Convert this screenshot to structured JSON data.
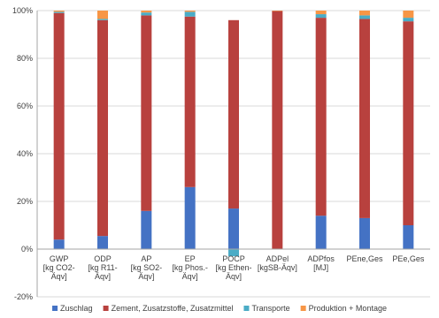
{
  "chart_data": {
    "type": "bar",
    "stacked": true,
    "categories": [
      [
        "GWP",
        "[kg CO2-",
        "Äqv]"
      ],
      [
        "ODP",
        "[kg R11-",
        "Äqv]"
      ],
      [
        "AP",
        "[kg SO2-",
        "Äqv]"
      ],
      [
        "EP",
        "[kg Phos.-",
        "Äqv]"
      ],
      [
        "POCP",
        "[kg Ethen-",
        "Äqv]"
      ],
      [
        "ADPel",
        "[kgSB-Äqv]"
      ],
      [
        "ADPfos",
        "[MJ]"
      ],
      [
        "PEne,Ges"
      ],
      [
        "PEe,Ges"
      ]
    ],
    "series": [
      {
        "name": "Zuschlag",
        "color": "#4472C4",
        "values": [
          4,
          5.5,
          16,
          26,
          17,
          0,
          14,
          13,
          10
        ]
      },
      {
        "name": "Zement, Zusatzstoffe, Zusatzmittel",
        "color": "#B8413E",
        "values": [
          95,
          90.5,
          82,
          71.5,
          79,
          99.8,
          83,
          83.5,
          85.5
        ]
      },
      {
        "name": "Transporte",
        "color": "#4BACC6",
        "values": [
          0.5,
          0.5,
          1.2,
          2,
          -3,
          0,
          1.5,
          1.5,
          1.5
        ]
      },
      {
        "name": "Produktion + Montage",
        "color": "#F79646",
        "values": [
          0.5,
          3.5,
          0.8,
          0.5,
          0,
          0.2,
          1.5,
          2,
          3
        ]
      }
    ],
    "y_ticks": [
      "-20%",
      "0%",
      "20%",
      "40%",
      "60%",
      "80%",
      "100%"
    ],
    "ylim": [
      -20,
      100
    ],
    "grid": true,
    "legend_position": "bottom"
  }
}
